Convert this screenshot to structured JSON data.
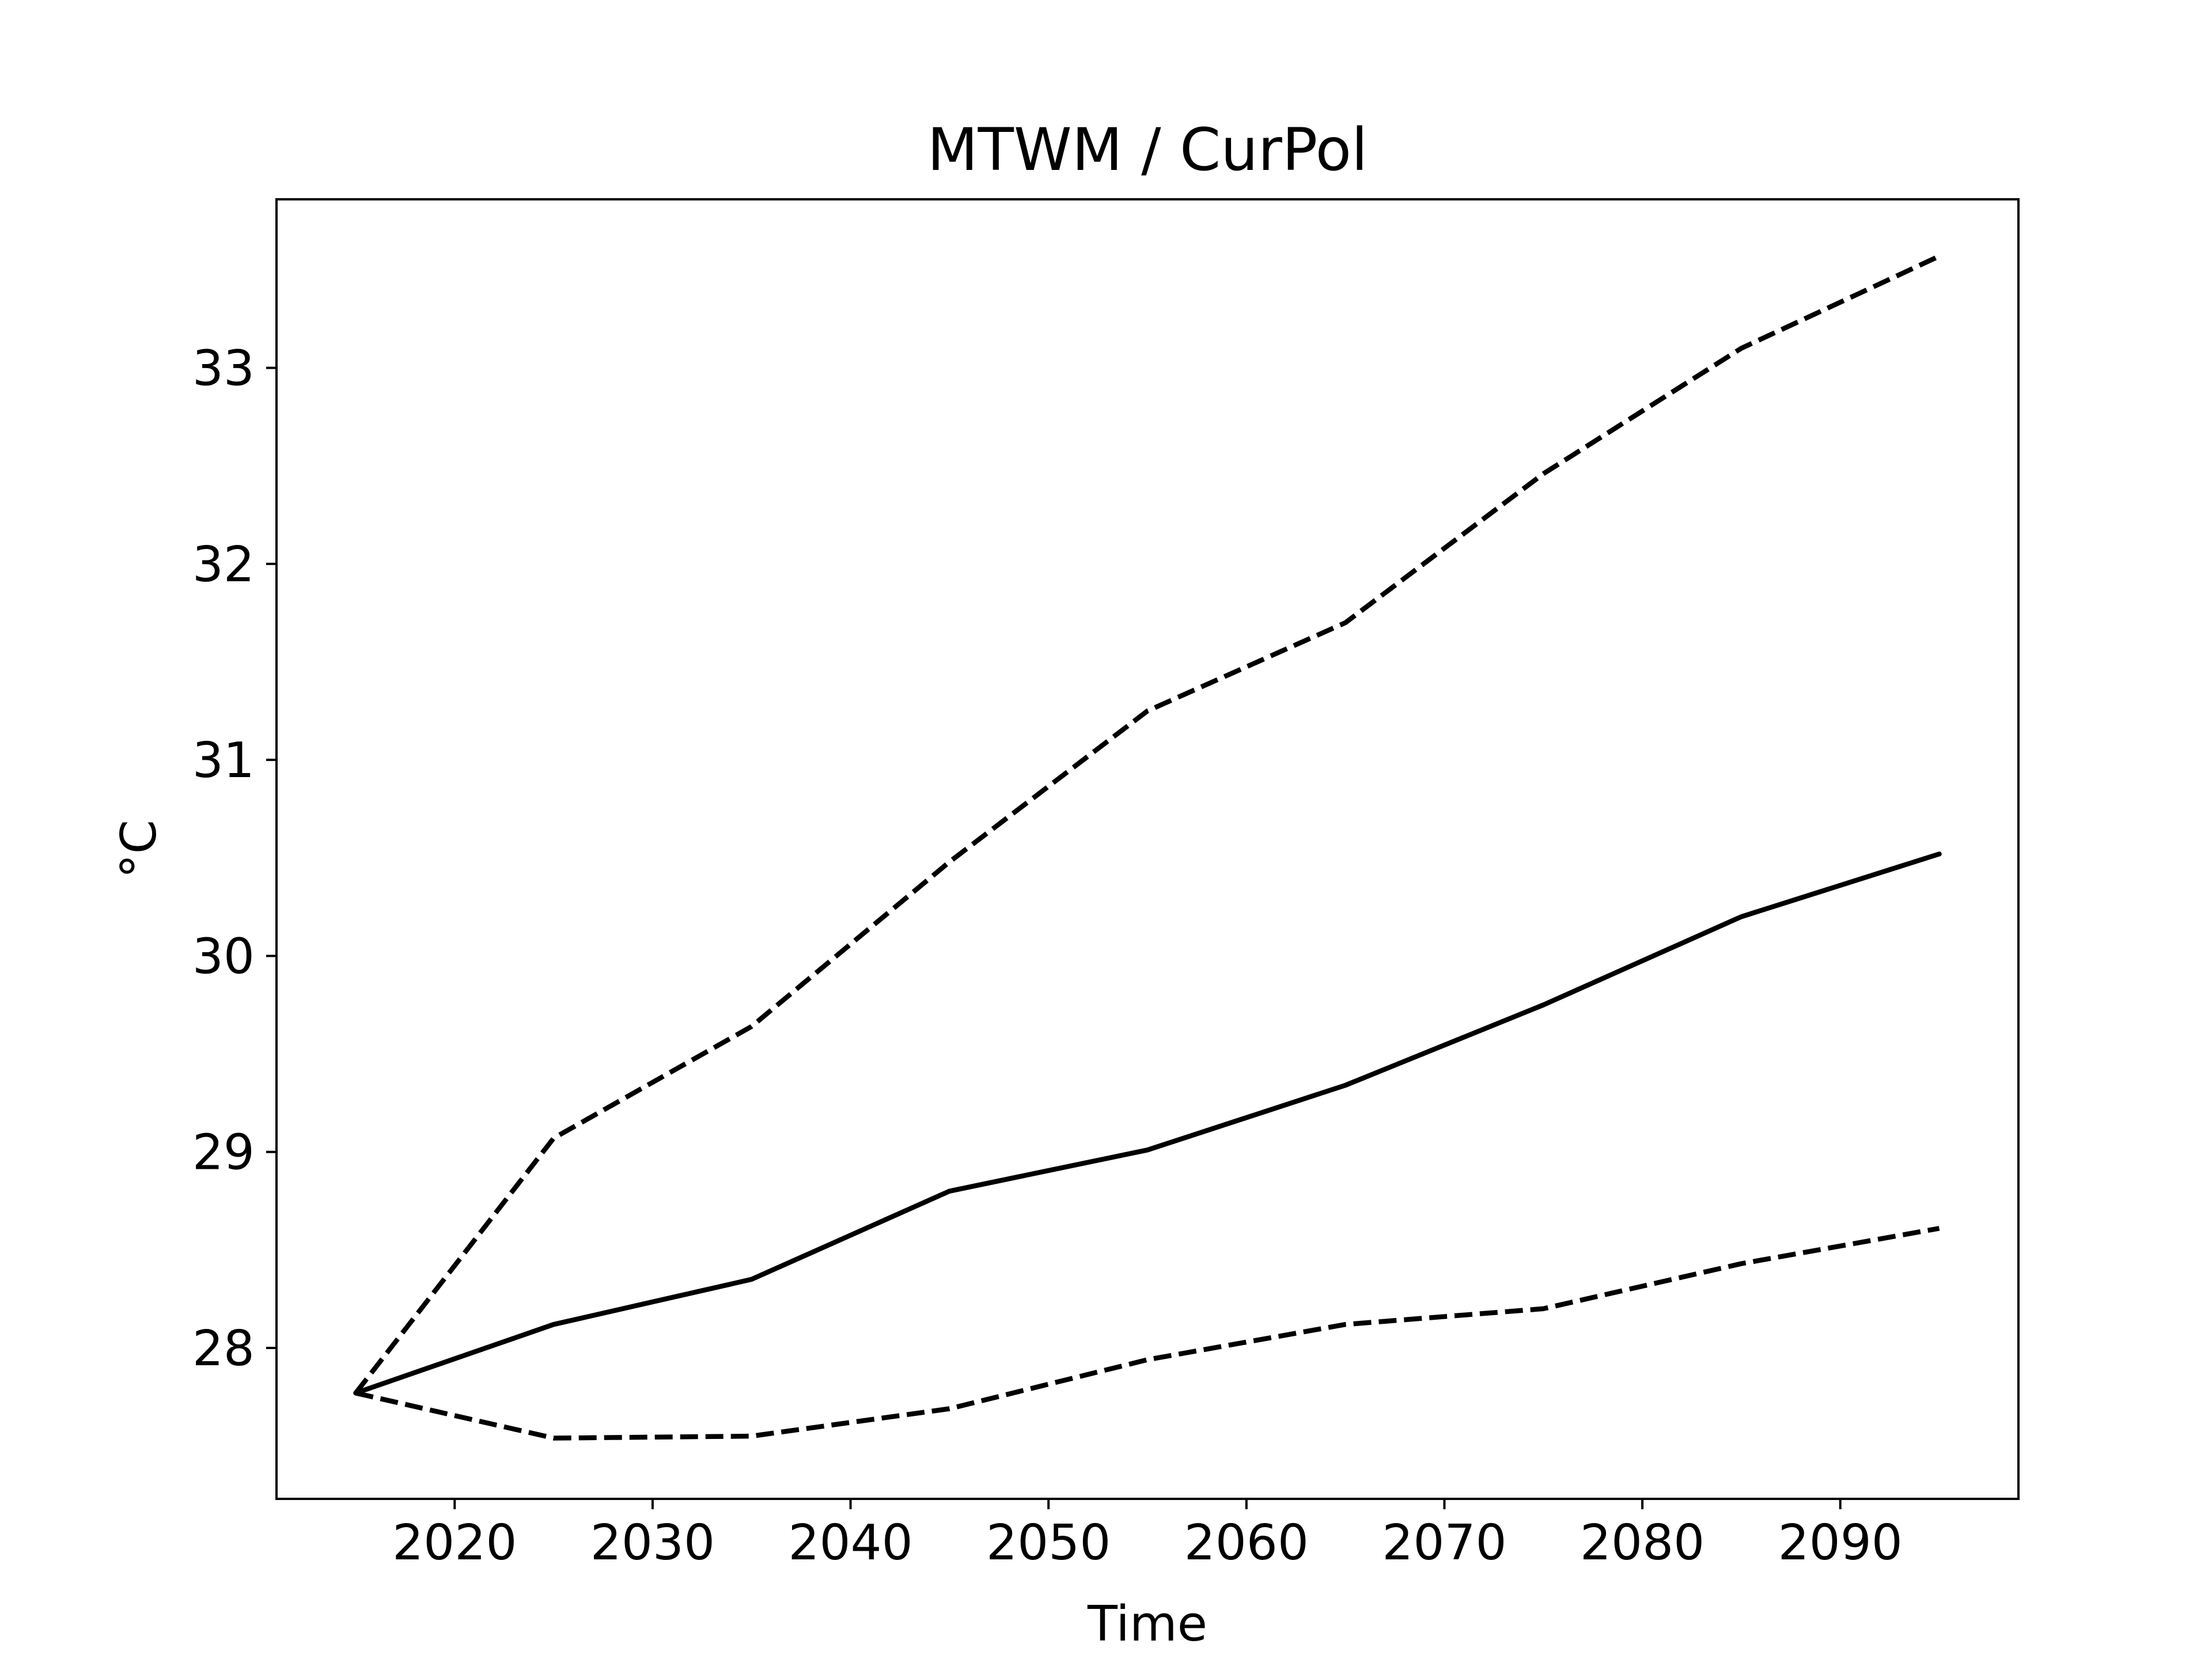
{
  "chart_data": {
    "type": "line",
    "title": "MTWM / CurPol",
    "xlabel": "Time",
    "ylabel": "°C",
    "xlim": [
      2011,
      2099
    ],
    "ylim": [
      27.23,
      33.86
    ],
    "x_ticks": [
      2020,
      2030,
      2040,
      2050,
      2060,
      2070,
      2080,
      2090
    ],
    "y_ticks": [
      28,
      29,
      30,
      31,
      32,
      33
    ],
    "grid": false,
    "legend": "none",
    "x": [
      2015,
      2025,
      2035,
      2045,
      2055,
      2065,
      2075,
      2085,
      2095
    ],
    "series": [
      {
        "style": "dashed",
        "color": "#000000",
        "values": [
          27.77,
          29.07,
          29.64,
          30.48,
          31.25,
          31.7,
          32.46,
          33.1,
          33.57
        ]
      },
      {
        "style": "solid",
        "color": "#000000",
        "values": [
          27.77,
          28.12,
          28.35,
          28.8,
          29.01,
          29.34,
          29.75,
          30.2,
          30.52
        ]
      },
      {
        "style": "dashed",
        "color": "#000000",
        "values": [
          27.77,
          27.54,
          27.55,
          27.69,
          27.94,
          28.12,
          28.2,
          28.43,
          28.61
        ]
      }
    ]
  }
}
